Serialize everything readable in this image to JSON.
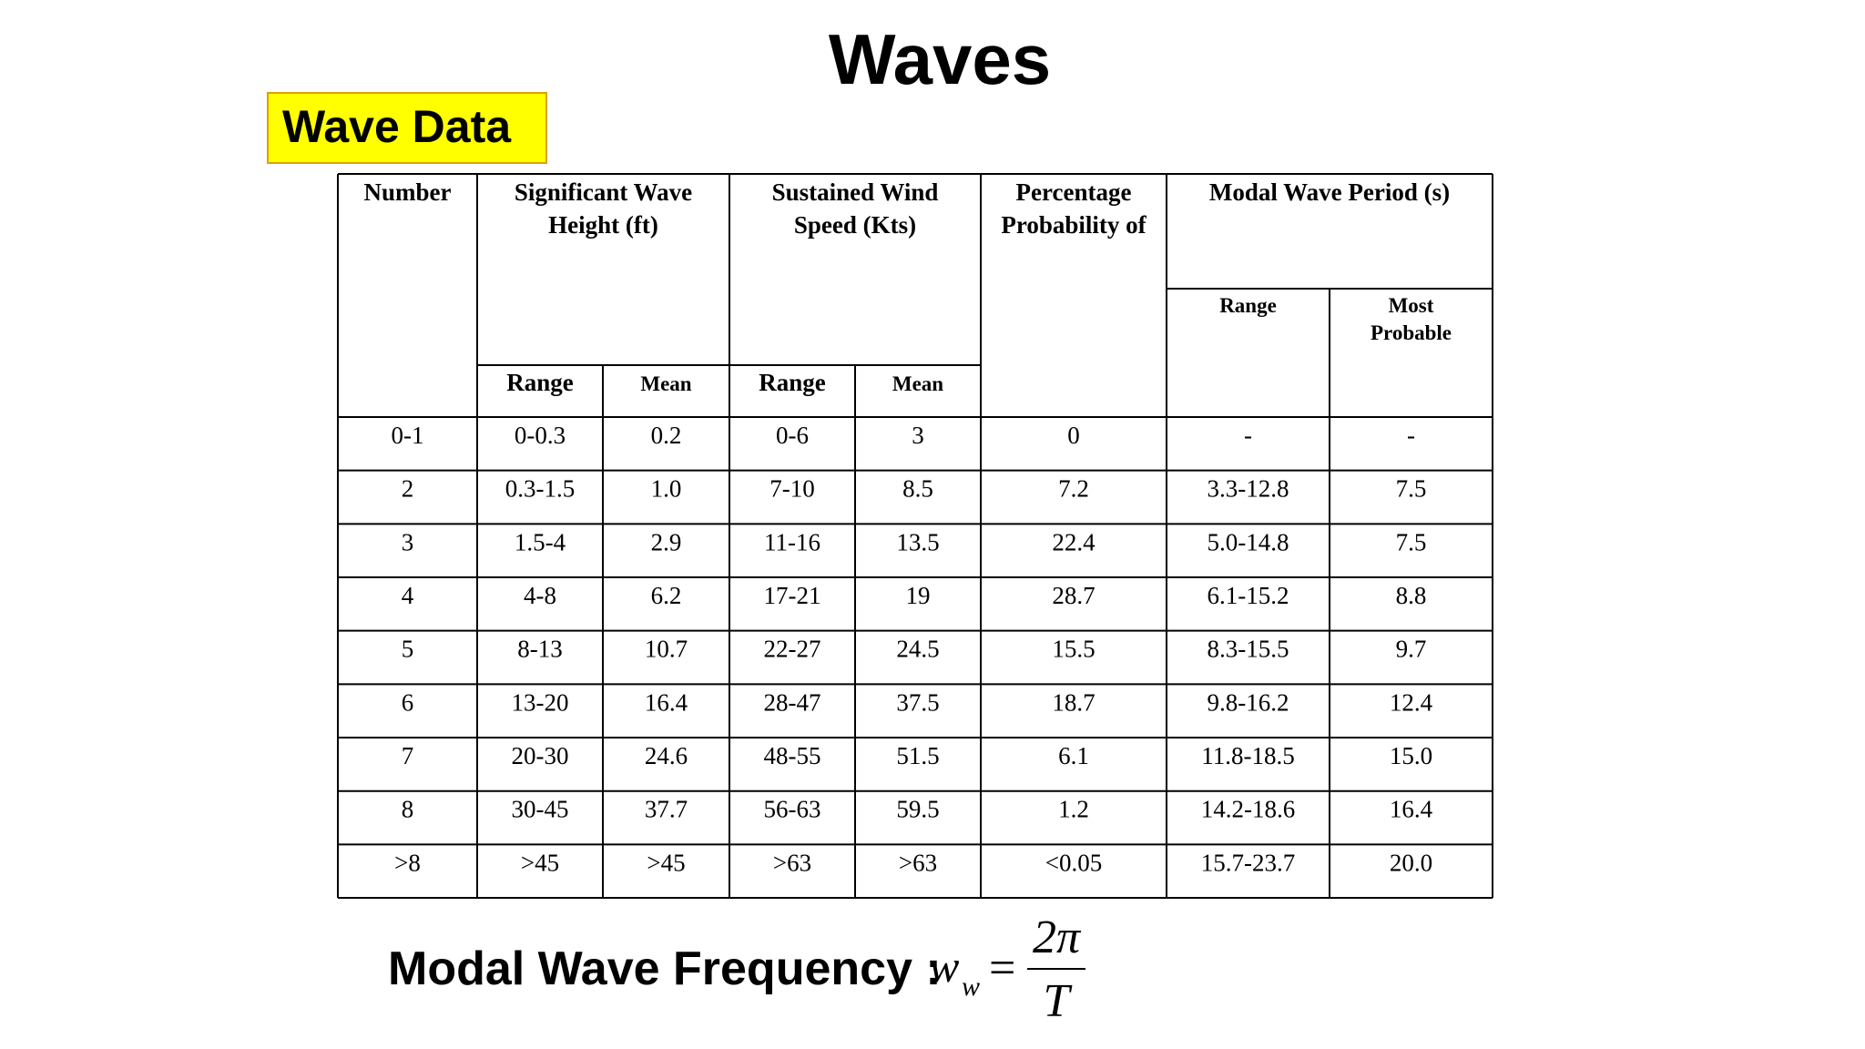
{
  "title": "Waves",
  "section_label": "Wave Data",
  "table": {
    "columns": [
      {
        "label": [
          "Number"
        ]
      },
      {
        "label": [
          "Significant Wave",
          "Height (ft)"
        ],
        "sub": [
          [
            "Range"
          ],
          [
            "Mean"
          ]
        ]
      },
      {
        "label": [
          "Sustained Wind",
          "Speed (Kts)"
        ],
        "sub": [
          [
            "Range"
          ],
          [
            "Mean"
          ]
        ]
      },
      {
        "label": [
          "Percentage",
          "Probability of"
        ]
      },
      {
        "label": [
          "Modal Wave Period (s)"
        ],
        "sub": [
          [
            "Range"
          ],
          [
            "Most",
            "Probable"
          ]
        ]
      }
    ],
    "rows": [
      [
        "0-1",
        "0-0.3",
        "0.2",
        "0-6",
        "3",
        "0",
        "-",
        "-"
      ],
      [
        "2",
        "0.3-1.5",
        "1.0",
        "7-10",
        "8.5",
        "7.2",
        "3.3-12.8",
        "7.5"
      ],
      [
        "3",
        "1.5-4",
        "2.9",
        "11-16",
        "13.5",
        "22.4",
        "5.0-14.8",
        "7.5"
      ],
      [
        "4",
        "4-8",
        "6.2",
        "17-21",
        "19",
        "28.7",
        "6.1-15.2",
        "8.8"
      ],
      [
        "5",
        "8-13",
        "10.7",
        "22-27",
        "24.5",
        "15.5",
        "8.3-15.5",
        "9.7"
      ],
      [
        "6",
        "13-20",
        "16.4",
        "28-47",
        "37.5",
        "18.7",
        "9.8-16.2",
        "12.4"
      ],
      [
        "7",
        "20-30",
        "24.6",
        "48-55",
        "51.5",
        "6.1",
        "11.8-18.5",
        "15.0"
      ],
      [
        "8",
        "30-45",
        "37.7",
        "56-63",
        "59.5",
        "1.2",
        "14.2-18.6",
        "16.4"
      ],
      [
        ">8",
        ">45",
        ">45",
        ">63",
        ">63",
        "<0.05",
        "15.7-23.7",
        "20.0"
      ]
    ]
  },
  "formula": {
    "label": "Modal Wave Frequency :",
    "lhs": "w",
    "lhs_sub": "w",
    "equals": "=",
    "numerator": "2π",
    "denominator": "T"
  }
}
